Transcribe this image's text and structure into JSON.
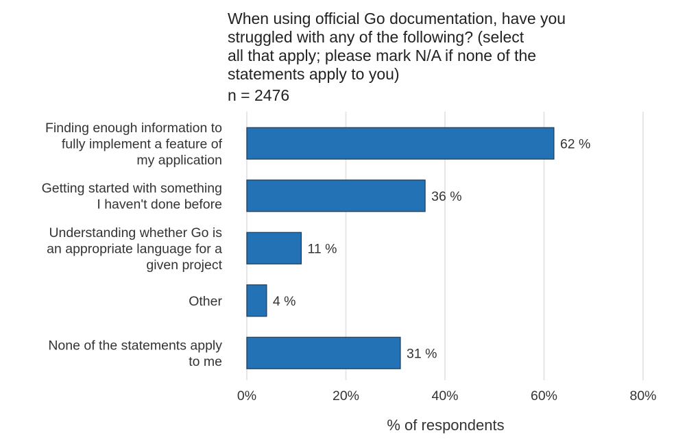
{
  "chart_data": {
    "type": "bar",
    "orientation": "horizontal",
    "title_lines": [
      "When using official Go documentation, have you",
      "struggled with any of the following? (select",
      "all that apply; please mark N/A if none of the",
      "statements apply to you)"
    ],
    "subtitle": "n = 2476",
    "categories": [
      {
        "lines": [
          "Finding enough information to",
          "fully implement a feature of",
          "my application"
        ]
      },
      {
        "lines": [
          "Getting started with something",
          "I haven't done before"
        ]
      },
      {
        "lines": [
          "Understanding whether Go is",
          "an appropriate language for a",
          "given project"
        ]
      },
      {
        "lines": [
          "Other"
        ]
      },
      {
        "lines": [
          "None of the statements apply",
          "to me"
        ]
      }
    ],
    "values": [
      62,
      36,
      11,
      4,
      31
    ],
    "value_labels": [
      "62 %",
      "36 %",
      "11 %",
      "4 %",
      "31 %"
    ],
    "xlabel": "% of respondents",
    "xlim": [
      0,
      80
    ],
    "xticks": [
      0,
      20,
      40,
      60,
      80
    ],
    "xtick_labels": [
      "0%",
      "20%",
      "40%",
      "60%",
      "80%"
    ],
    "grid": "vertical",
    "legend": "none",
    "bar_color": "#2272b5",
    "bar_edge_color": "#1f3a55",
    "grid_color": "#e6e6e6"
  }
}
